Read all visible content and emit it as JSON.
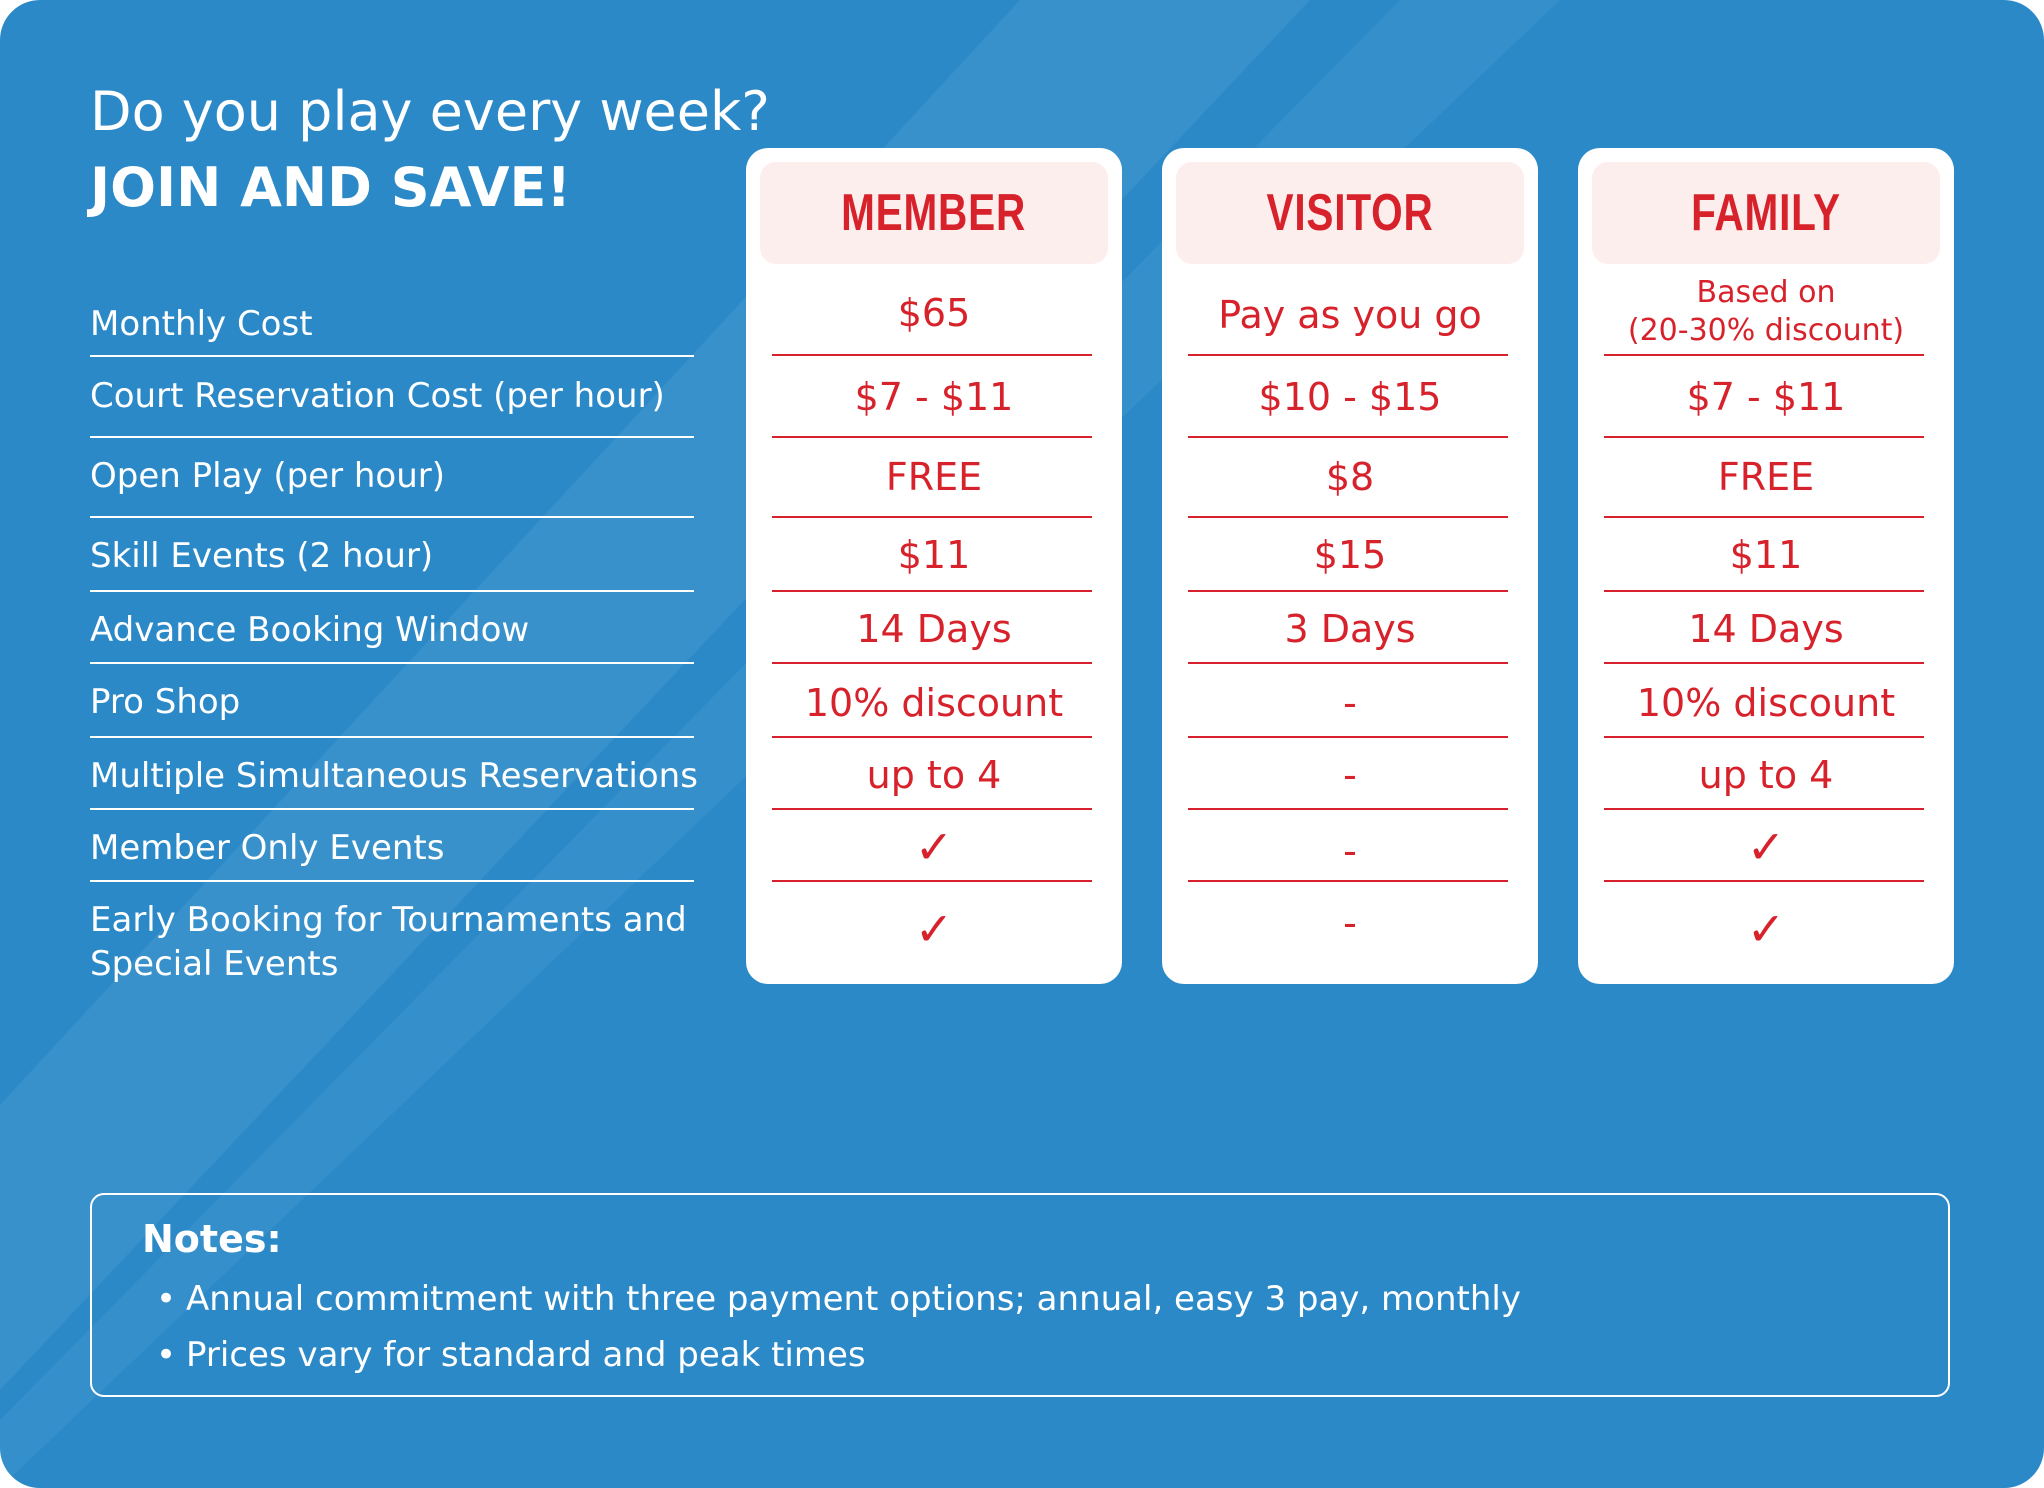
{
  "colors": {
    "background": "#2b89c8",
    "accent": "#d7222b",
    "header_fill": "#fdeeee",
    "card": "#ffffff"
  },
  "headline": "Do you play every week?",
  "subhead": "JOIN AND SAVE!",
  "features": [
    "Monthly Cost",
    "Court Reservation Cost (per hour)",
    "Open Play (per hour)",
    "Skill Events (2 hour)",
    "Advance Booking Window",
    "Pro Shop",
    "Multiple Simultaneous Reservations",
    "Member Only Events",
    "Early Booking for Tournaments and Special Events"
  ],
  "plans": [
    {
      "name": "MEMBER",
      "values": [
        "$65",
        "$7 - $11",
        "FREE",
        "$11",
        "14 Days",
        "10% discount",
        "up to 4",
        "✓",
        "✓"
      ]
    },
    {
      "name": "VISITOR",
      "values": [
        "Pay as you go",
        "$10 - $15",
        "$8",
        "$15",
        "3 Days",
        "-",
        "-",
        "-",
        "-"
      ]
    },
    {
      "name": "FAMILY",
      "monthly_cost_lines": [
        "Based on",
        "(20-30% discount)"
      ],
      "values": [
        "",
        "$7 - $11",
        "FREE",
        "$11",
        "14 Days",
        "10% discount",
        "up to 4",
        "✓",
        "✓"
      ]
    }
  ],
  "notes": {
    "title": "Notes:",
    "items": [
      "Annual commitment with three payment options; annual, easy 3 pay, monthly",
      "Prices vary for standard and peak times"
    ]
  }
}
